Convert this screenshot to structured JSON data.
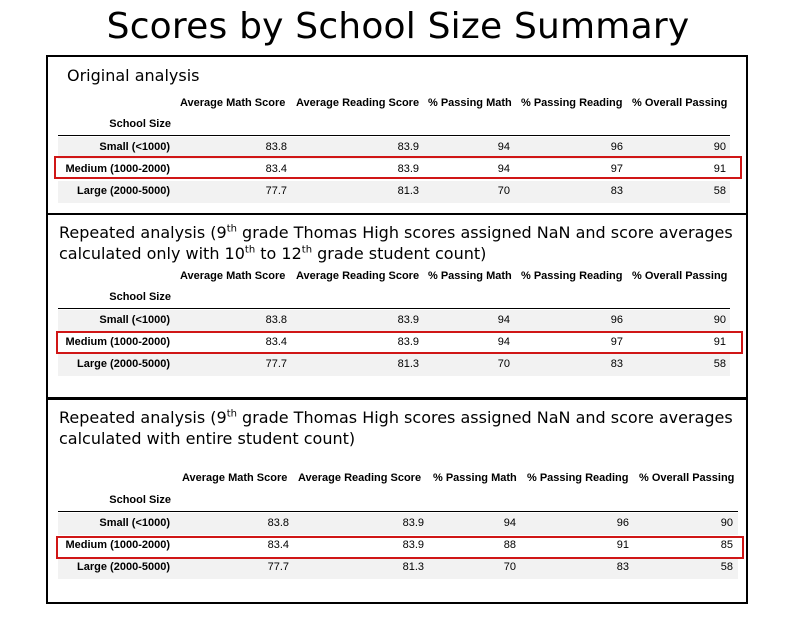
{
  "title": "Scores by School Size Summary",
  "columns": [
    "Average Math Score",
    "Average Reading Score",
    "% Passing Math",
    "% Passing Reading",
    "% Overall Passing"
  ],
  "index_name": "School Size",
  "panels": [
    {
      "caption": "Original analysis",
      "rows": [
        {
          "label": "Small (<1000)",
          "values": [
            "83.8",
            "83.9",
            "94",
            "96",
            "90"
          ]
        },
        {
          "label": "Medium (1000-2000)",
          "values": [
            "83.4",
            "83.9",
            "94",
            "97",
            "91"
          ]
        },
        {
          "label": "Large (2000-5000)",
          "values": [
            "77.7",
            "81.3",
            "70",
            "83",
            "58"
          ]
        }
      ]
    },
    {
      "caption_parts": [
        "Repeated analysis (9",
        "th",
        " grade Thomas High scores assigned NaN and score averages calculated only with 10",
        "th",
        " to 12",
        "th",
        " grade student count)"
      ],
      "rows": [
        {
          "label": "Small (<1000)",
          "values": [
            "83.8",
            "83.9",
            "94",
            "96",
            "90"
          ]
        },
        {
          "label": "Medium (1000-2000)",
          "values": [
            "83.4",
            "83.9",
            "94",
            "97",
            "91"
          ]
        },
        {
          "label": "Large (2000-5000)",
          "values": [
            "77.7",
            "81.3",
            "70",
            "83",
            "58"
          ]
        }
      ]
    },
    {
      "caption_parts": [
        "Repeated analysis (9",
        "th",
        " grade Thomas High scores assigned NaN and score averages calculated with entire student count)"
      ],
      "rows": [
        {
          "label": "Small (<1000)",
          "values": [
            "83.8",
            "83.9",
            "94",
            "96",
            "90"
          ]
        },
        {
          "label": "Medium (1000-2000)",
          "values": [
            "83.4",
            "83.9",
            "88",
            "91",
            "85"
          ]
        },
        {
          "label": "Large (2000-5000)",
          "values": [
            "77.7",
            "81.3",
            "70",
            "83",
            "58"
          ]
        }
      ]
    }
  ]
}
